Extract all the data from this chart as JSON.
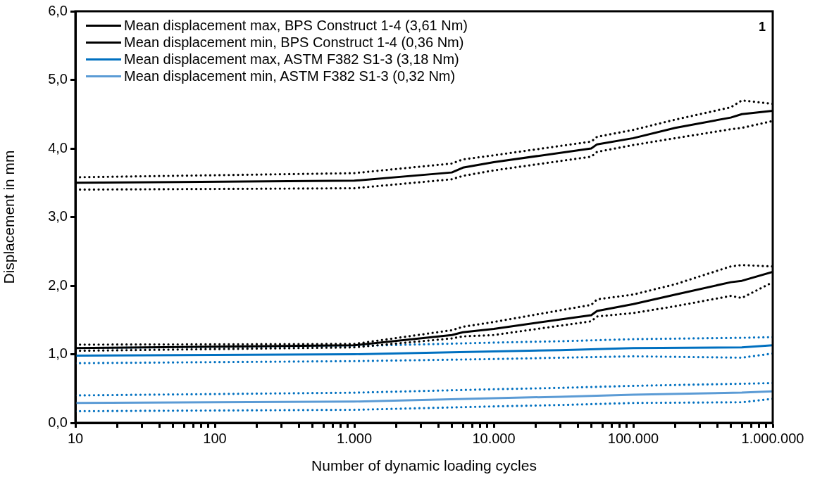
{
  "chart_data": {
    "type": "line",
    "xlabel": "Number of dynamic loading cycles",
    "ylabel": "Displacement in mm",
    "log": "x",
    "xlim": [
      10,
      1000000
    ],
    "ylim": [
      0,
      6
    ],
    "xticks": [
      {
        "value": 10,
        "label": "10"
      },
      {
        "value": 20,
        "label": null
      },
      {
        "value": 30,
        "label": null
      },
      {
        "value": 40,
        "label": null
      },
      {
        "value": 50,
        "label": null
      },
      {
        "value": 60,
        "label": null
      },
      {
        "value": 70,
        "label": null
      },
      {
        "value": 80,
        "label": null
      },
      {
        "value": 90,
        "label": null
      },
      {
        "value": 100,
        "label": "100"
      },
      {
        "value": 200,
        "label": null
      },
      {
        "value": 300,
        "label": null
      },
      {
        "value": 400,
        "label": null
      },
      {
        "value": 500,
        "label": null
      },
      {
        "value": 600,
        "label": null
      },
      {
        "value": 700,
        "label": null
      },
      {
        "value": 800,
        "label": null
      },
      {
        "value": 900,
        "label": null
      },
      {
        "value": 1000,
        "label": "1.000"
      },
      {
        "value": 2000,
        "label": null
      },
      {
        "value": 3000,
        "label": null
      },
      {
        "value": 4000,
        "label": null
      },
      {
        "value": 5000,
        "label": null
      },
      {
        "value": 6000,
        "label": null
      },
      {
        "value": 7000,
        "label": null
      },
      {
        "value": 8000,
        "label": null
      },
      {
        "value": 9000,
        "label": null
      },
      {
        "value": 10000,
        "label": "10.000"
      },
      {
        "value": 20000,
        "label": null
      },
      {
        "value": 30000,
        "label": null
      },
      {
        "value": 40000,
        "label": null
      },
      {
        "value": 50000,
        "label": null
      },
      {
        "value": 60000,
        "label": null
      },
      {
        "value": 70000,
        "label": null
      },
      {
        "value": 80000,
        "label": null
      },
      {
        "value": 90000,
        "label": null
      },
      {
        "value": 100000,
        "label": "100.000"
      },
      {
        "value": 200000,
        "label": null
      },
      {
        "value": 300000,
        "label": null
      },
      {
        "value": 400000,
        "label": null
      },
      {
        "value": 500000,
        "label": null
      },
      {
        "value": 600000,
        "label": null
      },
      {
        "value": 700000,
        "label": null
      },
      {
        "value": 800000,
        "label": null
      },
      {
        "value": 900000,
        "label": null
      },
      {
        "value": 1000000,
        "label": "1.000.000"
      }
    ],
    "yticks": [
      {
        "value": 0,
        "label": "0,0"
      },
      {
        "value": 1,
        "label": "1,0"
      },
      {
        "value": 2,
        "label": "2,0"
      },
      {
        "value": 3,
        "label": "3,0"
      },
      {
        "value": 4,
        "label": "4,0"
      },
      {
        "value": 5,
        "label": "5,0"
      },
      {
        "value": 6,
        "label": "6,0"
      }
    ],
    "grid": false,
    "legend": "top left",
    "marker": "none",
    "line_style": "solid",
    "annotations": [
      "1"
    ],
    "series": [
      {
        "name": "Mean displacement max, BPS Construct 1-4 (3,61 Nm)",
        "color": "#000000",
        "x": [
          10,
          1000,
          5000,
          6000,
          10000,
          50000,
          55000,
          100000,
          200000,
          500000,
          600000,
          1000000
        ],
        "values": [
          3.5,
          3.53,
          3.65,
          3.72,
          3.8,
          4.0,
          4.06,
          4.15,
          4.3,
          4.45,
          4.5,
          4.55
        ]
      },
      {
        "line_style": "dotted",
        "color": "#000000",
        "x": [
          10,
          1000,
          5000,
          6000,
          10000,
          50000,
          55000,
          100000,
          200000,
          500000,
          600000,
          1000000
        ],
        "values": [
          3.4,
          3.42,
          3.55,
          3.6,
          3.68,
          3.88,
          3.95,
          4.05,
          4.15,
          4.28,
          4.3,
          4.4
        ]
      },
      {
        "line_style": "dotted",
        "color": "#000000",
        "x": [
          10,
          1000,
          5000,
          6000,
          10000,
          50000,
          55000,
          100000,
          200000,
          500000,
          600000,
          1000000
        ],
        "values": [
          3.58,
          3.64,
          3.78,
          3.84,
          3.9,
          4.1,
          4.17,
          4.27,
          4.42,
          4.6,
          4.7,
          4.65
        ]
      },
      {
        "name": "Mean displacement min, BPS Construct 1-4 (0,36 Nm)",
        "color": "#000000",
        "x": [
          10,
          1000,
          5000,
          6000,
          10000,
          50000,
          55000,
          100000,
          200000,
          500000,
          600000,
          1000000
        ],
        "values": [
          1.09,
          1.13,
          1.28,
          1.32,
          1.37,
          1.57,
          1.63,
          1.73,
          1.87,
          2.05,
          2.07,
          2.2
        ]
      },
      {
        "line_style": "dotted",
        "color": "#000000",
        "x": [
          10,
          1000,
          5000,
          6000,
          10000,
          50000,
          55000,
          100000,
          200000,
          500000,
          600000,
          1000000
        ],
        "values": [
          1.05,
          1.1,
          1.23,
          1.26,
          1.28,
          1.48,
          1.55,
          1.6,
          1.7,
          1.85,
          1.82,
          2.05
        ]
      },
      {
        "line_style": "dotted",
        "color": "#000000",
        "x": [
          10,
          1000,
          5000,
          6000,
          10000,
          50000,
          55000,
          100000,
          200000,
          500000,
          600000,
          1000000
        ],
        "values": [
          1.14,
          1.15,
          1.35,
          1.4,
          1.47,
          1.72,
          1.8,
          1.87,
          2.02,
          2.28,
          2.3,
          2.28
        ]
      },
      {
        "name": "Mean displacement max, ASTM F382 S1-3 (3,18 Nm)",
        "color": "#0070c0",
        "x": [
          10,
          1000,
          10000,
          30000,
          100000,
          600000,
          1000000
        ],
        "values": [
          0.98,
          1.0,
          1.04,
          1.06,
          1.09,
          1.1,
          1.13
        ]
      },
      {
        "line_style": "dotted",
        "color": "#0070c0",
        "x": [
          10,
          1000,
          10000,
          30000,
          100000,
          600000,
          1000000
        ],
        "values": [
          0.87,
          0.9,
          0.93,
          0.95,
          0.97,
          0.95,
          1.01
        ]
      },
      {
        "line_style": "dotted",
        "color": "#0070c0",
        "x": [
          10,
          1000,
          10000,
          30000,
          100000,
          600000,
          1000000
        ],
        "values": [
          1.09,
          1.12,
          1.17,
          1.19,
          1.22,
          1.24,
          1.25
        ]
      },
      {
        "name": "Mean displacement min, ASTM F382 S1-3 (0,32 Nm)",
        "color": "#5b9bd5",
        "x": [
          10,
          1000,
          10000,
          30000,
          100000,
          600000,
          1000000
        ],
        "values": [
          0.29,
          0.31,
          0.36,
          0.38,
          0.41,
          0.44,
          0.46
        ]
      },
      {
        "line_style": "dotted",
        "color": "#0070c0",
        "x": [
          10,
          1000,
          10000,
          30000,
          100000,
          600000,
          1000000
        ],
        "values": [
          0.17,
          0.19,
          0.24,
          0.26,
          0.29,
          0.3,
          0.35
        ]
      },
      {
        "line_style": "dotted",
        "color": "#0070c0",
        "x": [
          10,
          1000,
          10000,
          30000,
          100000,
          600000,
          1000000
        ],
        "values": [
          0.4,
          0.44,
          0.49,
          0.51,
          0.54,
          0.57,
          0.58
        ]
      }
    ]
  }
}
